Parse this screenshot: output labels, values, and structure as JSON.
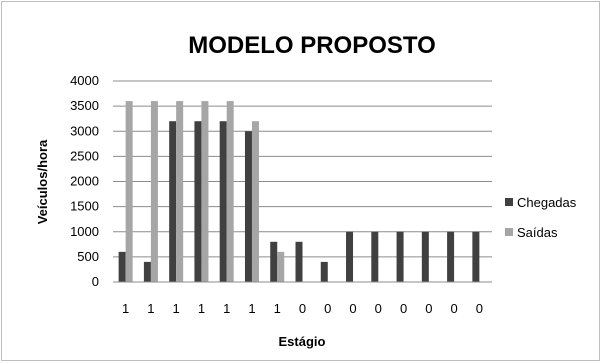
{
  "chart_data": {
    "type": "bar",
    "title": "MODELO PROPOSTO",
    "xlabel": "Estágio",
    "ylabel": "Veículos/hora",
    "ylim": [
      0,
      4000
    ],
    "yticks": [
      0,
      500,
      1000,
      1500,
      2000,
      2500,
      3000,
      3500,
      4000
    ],
    "categories": [
      "1",
      "1",
      "1",
      "1",
      "1",
      "1",
      "1",
      "0",
      "0",
      "0",
      "0",
      "0",
      "0",
      "0",
      "0"
    ],
    "series": [
      {
        "name": "Chegadas",
        "color": "#404040",
        "values": [
          600,
          400,
          3200,
          3200,
          3200,
          3000,
          800,
          800,
          400,
          1000,
          1000,
          1000,
          1000,
          1000,
          1000
        ]
      },
      {
        "name": "Saídas",
        "color": "#a6a6a6",
        "values": [
          3600,
          3600,
          3600,
          3600,
          3600,
          3200,
          600,
          0,
          0,
          0,
          0,
          0,
          0,
          0,
          0
        ]
      }
    ],
    "grid": true,
    "legend": "right"
  }
}
